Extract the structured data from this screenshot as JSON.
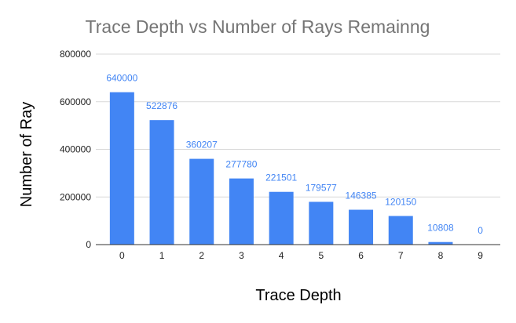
{
  "chart_data": {
    "type": "bar",
    "title": "Trace Depth vs Number of Rays Remainng",
    "xlabel": "Trace Depth",
    "ylabel": "Number of Ray",
    "categories": [
      "0",
      "1",
      "2",
      "3",
      "4",
      "5",
      "6",
      "7",
      "8",
      "9"
    ],
    "values": [
      640000,
      522876,
      360207,
      277780,
      221501,
      179577,
      146385,
      120150,
      10808,
      0
    ],
    "data_labels": [
      "640000",
      "522876",
      "360207",
      "277780",
      "221501",
      "179577",
      "146385",
      "120150",
      "10808",
      "0"
    ],
    "ylim": [
      0,
      800000
    ],
    "yticks": [
      0,
      200000,
      400000,
      600000,
      800000
    ],
    "ytick_labels": [
      "0",
      "200000",
      "400000",
      "600000",
      "800000"
    ],
    "grid": true,
    "legend": "none",
    "colors": {
      "bar": "#4285f4",
      "data_label": "#4285f4",
      "title": "#757575",
      "axis_label": "#000000",
      "tick_label": "#222222",
      "grid": "#d9d9d9",
      "baseline": "#333333"
    }
  }
}
